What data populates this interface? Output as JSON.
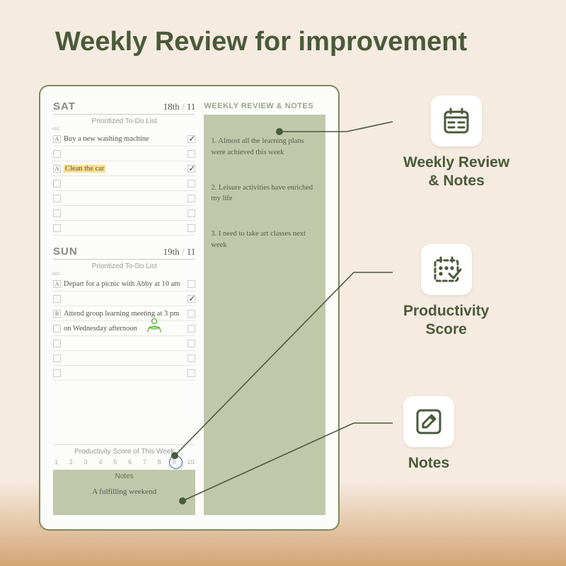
{
  "title": "Weekly Review for  improvement",
  "colors": {
    "accent": "#4a5a3a",
    "planner_border": "#7a8a5a",
    "muted_bg": "#c0c8aa",
    "page_bg": "#f5ebe0",
    "highlight": "#f9e08a",
    "circle_pen": "#3060d0",
    "doodle_green": "#6fbf4a",
    "text_muted": "#999"
  },
  "planner": {
    "days": [
      {
        "name": "SAT",
        "date_hand": "18th",
        "date_month": "11",
        "subhead": "Prioritized To-Do List",
        "rows": [
          {
            "priority": "A",
            "text": "Buy a new washing machine",
            "checked": true,
            "highlight": false
          },
          {
            "priority": "",
            "text": "",
            "checked": false,
            "highlight": false
          },
          {
            "priority": "A",
            "text": "Clean the car",
            "checked": true,
            "highlight": true
          },
          {
            "priority": "",
            "text": "",
            "checked": false,
            "highlight": false
          },
          {
            "priority": "",
            "text": "",
            "checked": false,
            "highlight": false
          },
          {
            "priority": "",
            "text": "",
            "checked": false,
            "highlight": false
          },
          {
            "priority": "",
            "text": "",
            "checked": false,
            "highlight": false
          }
        ]
      },
      {
        "name": "SUN",
        "date_hand": "19th",
        "date_month": "11",
        "subhead": "Prioritized To-Do List",
        "rows": [
          {
            "priority": "A",
            "text": "Depart for a picnic with Abby at 10 am",
            "checked": false,
            "highlight": false
          },
          {
            "priority": "",
            "text": "",
            "checked": true,
            "highlight": false
          },
          {
            "priority": "B",
            "text": "Attend group learning meeting at 3 pm",
            "checked": false,
            "highlight": false
          },
          {
            "priority": "",
            "text": "on Wednesday afternoon",
            "checked": false,
            "highlight": false
          },
          {
            "priority": "",
            "text": "",
            "checked": false,
            "highlight": false
          },
          {
            "priority": "",
            "text": "",
            "checked": false,
            "highlight": false
          },
          {
            "priority": "",
            "text": "",
            "checked": false,
            "highlight": false
          }
        ]
      }
    ],
    "score": {
      "title": "Productivity Score of This Week",
      "values": [
        1,
        2,
        3,
        4,
        5,
        6,
        7,
        8,
        9,
        10
      ],
      "circled": 9
    },
    "notes": {
      "title": "Notes",
      "text": "A fulfilling weekend"
    },
    "review": {
      "header": "WEEKLY REVIEW & NOTES",
      "items": [
        "1. Almost all the learning plans were achieved this week",
        "2. Leisure activities have enriched my life",
        "3. I need to take art classes next week"
      ]
    }
  },
  "callouts": [
    {
      "label": "Weekly Review\n& Notes"
    },
    {
      "label": "Productivity\nScore"
    },
    {
      "label": "Notes"
    }
  ],
  "sep": " / ",
  "abc_label": "ABC"
}
